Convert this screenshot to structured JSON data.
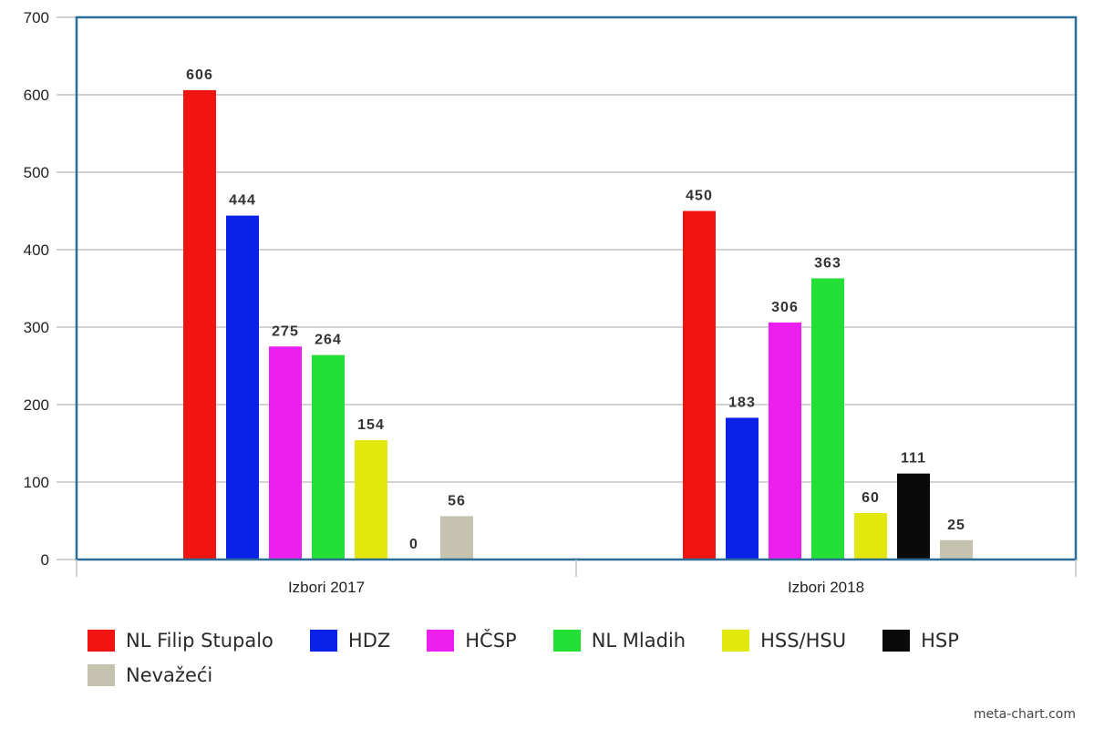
{
  "chart_data": {
    "type": "bar",
    "title": "",
    "xlabel": "",
    "ylabel": "",
    "ylim": [
      0,
      700
    ],
    "yticks": [
      0,
      100,
      200,
      300,
      400,
      500,
      600,
      700
    ],
    "grid": true,
    "legend_position": "bottom",
    "categories": [
      "Izbori 2017",
      "Izbori 2018"
    ],
    "series": [
      {
        "name": "NL Filip Stupalo",
        "color": "#f01510",
        "values": [
          606,
          450
        ]
      },
      {
        "name": "HDZ",
        "color": "#0a22e8",
        "values": [
          444,
          183
        ]
      },
      {
        "name": "HČSP",
        "color": "#ec1ef0",
        "values": [
          275,
          306
        ]
      },
      {
        "name": "NL Mladih",
        "color": "#24e036",
        "values": [
          264,
          363
        ]
      },
      {
        "name": "HSS/HSU",
        "color": "#e2e80e",
        "values": [
          154,
          60
        ]
      },
      {
        "name": "HSP",
        "color": "#0a0a0a",
        "values": [
          0,
          111
        ]
      },
      {
        "name": "Nevažeći",
        "color": "#c6c2b0",
        "values": [
          56,
          25
        ]
      }
    ],
    "data_label_overrides": [
      [
        null,
        null,
        null,
        null,
        null,
        null,
        null
      ],
      [
        null,
        null,
        null,
        null,
        null,
        null,
        null
      ]
    ]
  },
  "credit": "meta-chart.com"
}
